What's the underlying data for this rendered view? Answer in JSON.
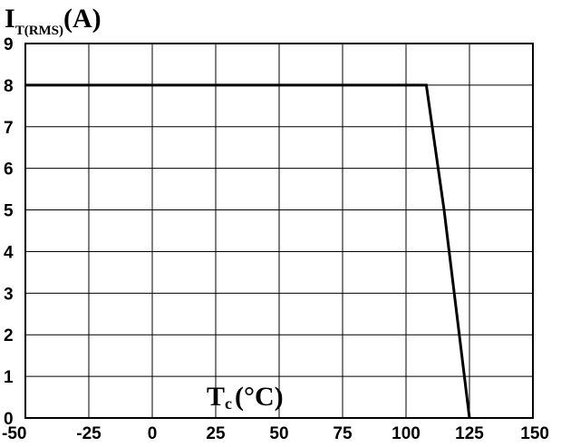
{
  "chart_data": {
    "type": "line",
    "ylabel_main": "I",
    "ylabel_sub": "T(RMS)",
    "ylabel_unit": "(A)",
    "xlabel_main": "T",
    "xlabel_sub": "c",
    "xlabel_unit": "(°C)",
    "xlim": [
      -50,
      150
    ],
    "ylim": [
      0,
      9
    ],
    "xticks": [
      -50,
      -25,
      0,
      25,
      50,
      75,
      100,
      125,
      150
    ],
    "yticks": [
      0,
      1,
      2,
      3,
      4,
      5,
      6,
      7,
      8,
      9
    ],
    "grid": true,
    "series": [
      {
        "x": [
          -50,
          108,
          115,
          125
        ],
        "y": [
          8,
          8,
          5,
          0
        ]
      }
    ]
  }
}
